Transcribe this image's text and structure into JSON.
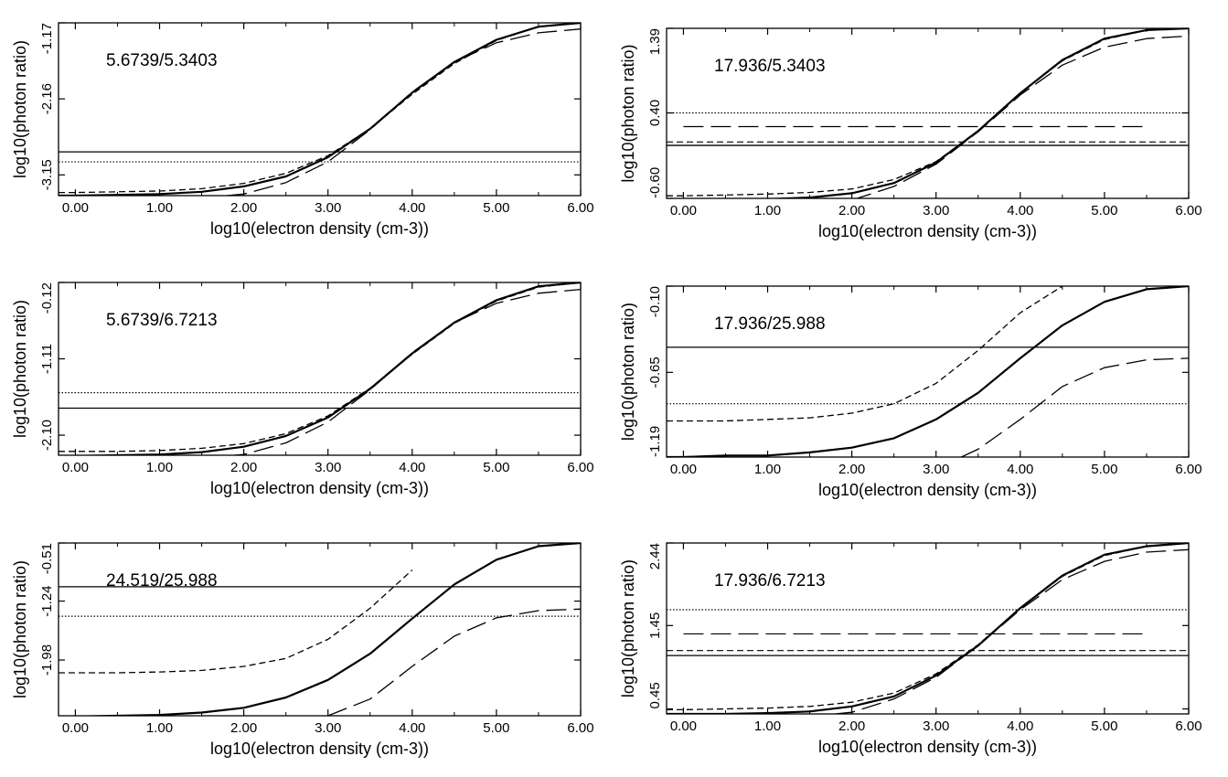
{
  "chart_data": [
    {
      "type": "line",
      "annotation": "5.6739/5.3403",
      "xlabel": "log10(electron density (cm-3))",
      "ylabel": "log10(photon ratio)",
      "xlim": [
        -0.2,
        6.0
      ],
      "ylim": [
        -3.42,
        -1.17
      ],
      "x_tick_labels": [
        "0.00",
        "1.00",
        "2.00",
        "3.00",
        "4.00",
        "5.00",
        "6.00"
      ],
      "y_tick_labels": [
        "-1.17",
        "-2.16",
        "-3.15"
      ],
      "y_tick_values": [
        -1.17,
        -2.16,
        -3.15
      ],
      "series": [
        {
          "style": "solid",
          "x": [
            -0.2,
            0,
            0.5,
            1,
            1.5,
            2,
            2.5,
            3,
            3.5,
            4,
            4.5,
            5,
            5.5,
            6
          ],
          "y": [
            -3.42,
            -3.42,
            -3.41,
            -3.4,
            -3.37,
            -3.3,
            -3.17,
            -2.92,
            -2.55,
            -2.08,
            -1.68,
            -1.39,
            -1.22,
            -1.17
          ]
        },
        {
          "style": "dashed",
          "x": [
            -0.2,
            0,
            0.5,
            1,
            1.5,
            2,
            2.5,
            3,
            3.5,
            4,
            4.5,
            5,
            5.5,
            6
          ],
          "y": [
            -3.38,
            -3.38,
            -3.37,
            -3.36,
            -3.33,
            -3.26,
            -3.13,
            -2.9,
            -2.55,
            -2.1,
            -1.7,
            -1.4,
            -1.22,
            -1.17
          ]
        },
        {
          "style": "long-dashed",
          "x": [
            1.8,
            2,
            2.5,
            3,
            3.5,
            4,
            4.5,
            5,
            5.5,
            6
          ],
          "y": [
            -3.42,
            -3.4,
            -3.25,
            -2.98,
            -2.56,
            -2.07,
            -1.68,
            -1.43,
            -1.3,
            -1.25
          ]
        }
      ],
      "hlines": [
        {
          "style": "solid",
          "y": -2.85
        },
        {
          "style": "dotted",
          "y": -2.98
        }
      ]
    },
    {
      "type": "line",
      "annotation": "17.936/5.3403",
      "xlabel": "log10(electron density (cm-3))",
      "ylabel": "log10(photon ratio)",
      "xlim": [
        -0.2,
        6.0
      ],
      "ylim": [
        -0.6,
        1.39
      ],
      "x_tick_labels": [
        "0.00",
        "1.00",
        "2.00",
        "3.00",
        "4.00",
        "5.00",
        "6.00"
      ],
      "y_tick_labels": [
        "1.39",
        "0.40",
        "-0.60"
      ],
      "y_tick_values": [
        1.39,
        0.4,
        -0.6
      ],
      "series": [
        {
          "style": "solid",
          "x": [
            -0.2,
            0,
            0.5,
            1,
            1.5,
            2,
            2.5,
            3,
            3.5,
            4,
            4.5,
            5,
            5.5,
            6
          ],
          "y": [
            -0.62,
            -0.62,
            -0.62,
            -0.61,
            -0.59,
            -0.54,
            -0.42,
            -0.18,
            0.19,
            0.63,
            1.02,
            1.27,
            1.37,
            1.39
          ]
        },
        {
          "style": "dashed",
          "x": [
            -0.2,
            0,
            0.5,
            1,
            1.5,
            2,
            2.5,
            3,
            3.5,
            4,
            4.5,
            5,
            5.5,
            6
          ],
          "y": [
            -0.57,
            -0.57,
            -0.56,
            -0.55,
            -0.53,
            -0.49,
            -0.38,
            -0.17,
            0.19,
            0.63,
            1.01,
            1.26,
            1.37,
            1.39
          ]
        },
        {
          "style": "long-dashed",
          "x": [
            2,
            2.5,
            3,
            3.5,
            4,
            4.5,
            5,
            5.5,
            6
          ],
          "y": [
            -0.62,
            -0.46,
            -0.2,
            0.18,
            0.61,
            0.96,
            1.17,
            1.27,
            1.3
          ]
        }
      ],
      "hlines": [
        {
          "style": "dotted",
          "y": 0.4
        },
        {
          "style": "long-dashed",
          "y": 0.24,
          "xrange": [
            0,
            5.5
          ]
        },
        {
          "style": "dashed",
          "y": 0.06
        },
        {
          "style": "solid",
          "y": 0.02
        }
      ]
    },
    {
      "type": "line",
      "annotation": "5.6739/6.7213",
      "xlabel": "log10(electron density (cm-3))",
      "ylabel": "log10(photon ratio)",
      "xlim": [
        -0.2,
        6.0
      ],
      "ylim": [
        -2.36,
        -0.12
      ],
      "x_tick_labels": [
        "0.00",
        "1.00",
        "2.00",
        "3.00",
        "4.00",
        "5.00",
        "6.00"
      ],
      "y_tick_labels": [
        "-0.12",
        "-1.11",
        "-2.10"
      ],
      "y_tick_values": [
        -0.12,
        -1.11,
        -2.1
      ],
      "series": [
        {
          "style": "solid",
          "x": [
            -0.2,
            0,
            0.5,
            1,
            1.5,
            2,
            2.5,
            3,
            3.5,
            4,
            4.5,
            5,
            5.5,
            6
          ],
          "y": [
            -2.37,
            -2.37,
            -2.36,
            -2.35,
            -2.32,
            -2.25,
            -2.11,
            -1.87,
            -1.5,
            -1.04,
            -0.64,
            -0.35,
            -0.17,
            -0.12
          ]
        },
        {
          "style": "dashed",
          "x": [
            -0.2,
            0,
            0.5,
            1,
            1.5,
            2,
            2.5,
            3,
            3.5,
            4,
            4.5,
            5,
            5.5,
            6
          ],
          "y": [
            -2.31,
            -2.31,
            -2.31,
            -2.3,
            -2.27,
            -2.21,
            -2.08,
            -1.85,
            -1.49,
            -1.05,
            -0.65,
            -0.36,
            -0.18,
            -0.12
          ]
        },
        {
          "style": "long-dashed",
          "x": [
            1.8,
            2,
            2.5,
            3,
            3.5,
            4,
            4.5,
            5,
            5.5,
            6
          ],
          "y": [
            -2.37,
            -2.35,
            -2.2,
            -1.93,
            -1.51,
            -1.03,
            -0.64,
            -0.39,
            -0.26,
            -0.21
          ]
        }
      ],
      "hlines": [
        {
          "style": "solid",
          "y": -1.75
        },
        {
          "style": "dotted",
          "y": -1.55
        }
      ]
    },
    {
      "type": "line",
      "annotation": "17.936/25.988",
      "xlabel": "log10(electron density (cm-3))",
      "ylabel": "log10(photon ratio)",
      "xlim": [
        -0.2,
        6.0
      ],
      "ylim": [
        -1.19,
        -0.1
      ],
      "x_tick_labels": [
        "0.00",
        "1.00",
        "2.00",
        "3.00",
        "4.00",
        "5.00",
        "6.00"
      ],
      "y_tick_labels": [
        "-0.10",
        "-0.65",
        "-1.19"
      ],
      "y_tick_values": [
        -0.1,
        -0.65,
        -1.19
      ],
      "series": [
        {
          "style": "solid",
          "x": [
            -0.2,
            0,
            0.5,
            1,
            1.5,
            2,
            2.5,
            3,
            3.5,
            4,
            4.5,
            5,
            5.5,
            6
          ],
          "y": [
            -1.19,
            -1.19,
            -1.18,
            -1.18,
            -1.16,
            -1.13,
            -1.07,
            -0.95,
            -0.78,
            -0.56,
            -0.35,
            -0.2,
            -0.12,
            -0.1
          ]
        },
        {
          "style": "dashed",
          "x": [
            -0.2,
            0,
            0.5,
            1,
            1.5,
            2,
            2.5,
            3,
            3.5,
            4,
            4.5
          ],
          "y": [
            -0.96,
            -0.96,
            -0.96,
            -0.95,
            -0.94,
            -0.91,
            -0.85,
            -0.72,
            -0.51,
            -0.27,
            -0.1
          ]
        },
        {
          "style": "long-dashed",
          "x": [
            3.3,
            3.5,
            4,
            4.5,
            5,
            5.5,
            6
          ],
          "y": [
            -1.19,
            -1.14,
            -0.95,
            -0.74,
            -0.62,
            -0.57,
            -0.56
          ]
        }
      ],
      "hlines": [
        {
          "style": "solid",
          "y": -0.49
        },
        {
          "style": "dotted",
          "y": -0.85
        }
      ]
    },
    {
      "type": "line",
      "annotation": "24.519/25.988",
      "xlabel": "log10(electron density (cm-3))",
      "ylabel": "log10(photon ratio)",
      "xlim": [
        -0.2,
        6.0
      ],
      "ylim": [
        -2.68,
        -0.51
      ],
      "x_tick_labels": [
        "0.00",
        "1.00",
        "2.00",
        "3.00",
        "4.00",
        "5.00",
        "6.00"
      ],
      "y_tick_labels": [
        "-0.51",
        "-1.24",
        "-1.98"
      ],
      "y_tick_values": [
        -0.51,
        -1.24,
        -1.98
      ],
      "series": [
        {
          "style": "solid",
          "x": [
            -0.2,
            0,
            0.5,
            1,
            1.5,
            2,
            2.5,
            3,
            3.5,
            4,
            4.5,
            5,
            5.5,
            6
          ],
          "y": [
            -2.69,
            -2.69,
            -2.68,
            -2.67,
            -2.64,
            -2.58,
            -2.45,
            -2.23,
            -1.9,
            -1.46,
            -1.03,
            -0.72,
            -0.55,
            -0.51
          ]
        },
        {
          "style": "dashed",
          "x": [
            -0.2,
            0,
            0.5,
            1,
            1.5,
            2,
            2.5,
            3,
            3.5,
            4
          ],
          "y": [
            -2.14,
            -2.14,
            -2.14,
            -2.13,
            -2.11,
            -2.06,
            -1.96,
            -1.72,
            -1.33,
            -0.85
          ]
        },
        {
          "style": "long-dashed",
          "x": [
            3,
            3.5,
            4,
            4.5,
            5,
            5.5,
            6
          ],
          "y": [
            -2.68,
            -2.47,
            -2.06,
            -1.68,
            -1.45,
            -1.36,
            -1.34
          ]
        }
      ],
      "hlines": [
        {
          "style": "solid",
          "y": -1.06
        },
        {
          "style": "dotted",
          "y": -1.43
        }
      ]
    },
    {
      "type": "line",
      "annotation": "17.936/6.7213",
      "xlabel": "log10(electron density (cm-3))",
      "ylabel": "log10(photon ratio)",
      "xlim": [
        -0.2,
        6.0
      ],
      "ylim": [
        0.39,
        2.44
      ],
      "x_tick_labels": [
        "0.00",
        "1.00",
        "2.00",
        "3.00",
        "4.00",
        "5.00",
        "6.00"
      ],
      "y_tick_labels": [
        "2.44",
        "1.45",
        "0.45"
      ],
      "y_tick_values": [
        2.44,
        1.45,
        0.45
      ],
      "series": [
        {
          "style": "solid",
          "x": [
            -0.2,
            0,
            0.5,
            1,
            1.5,
            2,
            2.5,
            3,
            3.5,
            4,
            4.5,
            5,
            5.5,
            6
          ],
          "y": [
            0.39,
            0.39,
            0.39,
            0.4,
            0.42,
            0.48,
            0.6,
            0.85,
            1.21,
            1.66,
            2.05,
            2.3,
            2.4,
            2.44
          ]
        },
        {
          "style": "dashed",
          "x": [
            -0.2,
            0,
            0.5,
            1,
            1.5,
            2,
            2.5,
            3,
            3.5,
            4,
            4.5,
            5,
            5.5,
            6
          ],
          "y": [
            0.44,
            0.44,
            0.45,
            0.46,
            0.48,
            0.53,
            0.64,
            0.87,
            1.22,
            1.66,
            2.04,
            2.29,
            2.4,
            2.44
          ]
        },
        {
          "style": "long-dashed",
          "x": [
            1.8,
            2,
            2.5,
            3,
            3.5,
            4,
            4.5,
            5,
            5.5,
            6
          ],
          "y": [
            0.39,
            0.41,
            0.57,
            0.83,
            1.21,
            1.64,
            2.0,
            2.22,
            2.33,
            2.36
          ]
        }
      ],
      "hlines": [
        {
          "style": "dotted",
          "y": 1.64
        },
        {
          "style": "long-dashed",
          "y": 1.35,
          "xrange": [
            0,
            5.5
          ]
        },
        {
          "style": "dashed",
          "y": 1.15
        },
        {
          "style": "solid",
          "y": 1.09
        }
      ]
    }
  ]
}
